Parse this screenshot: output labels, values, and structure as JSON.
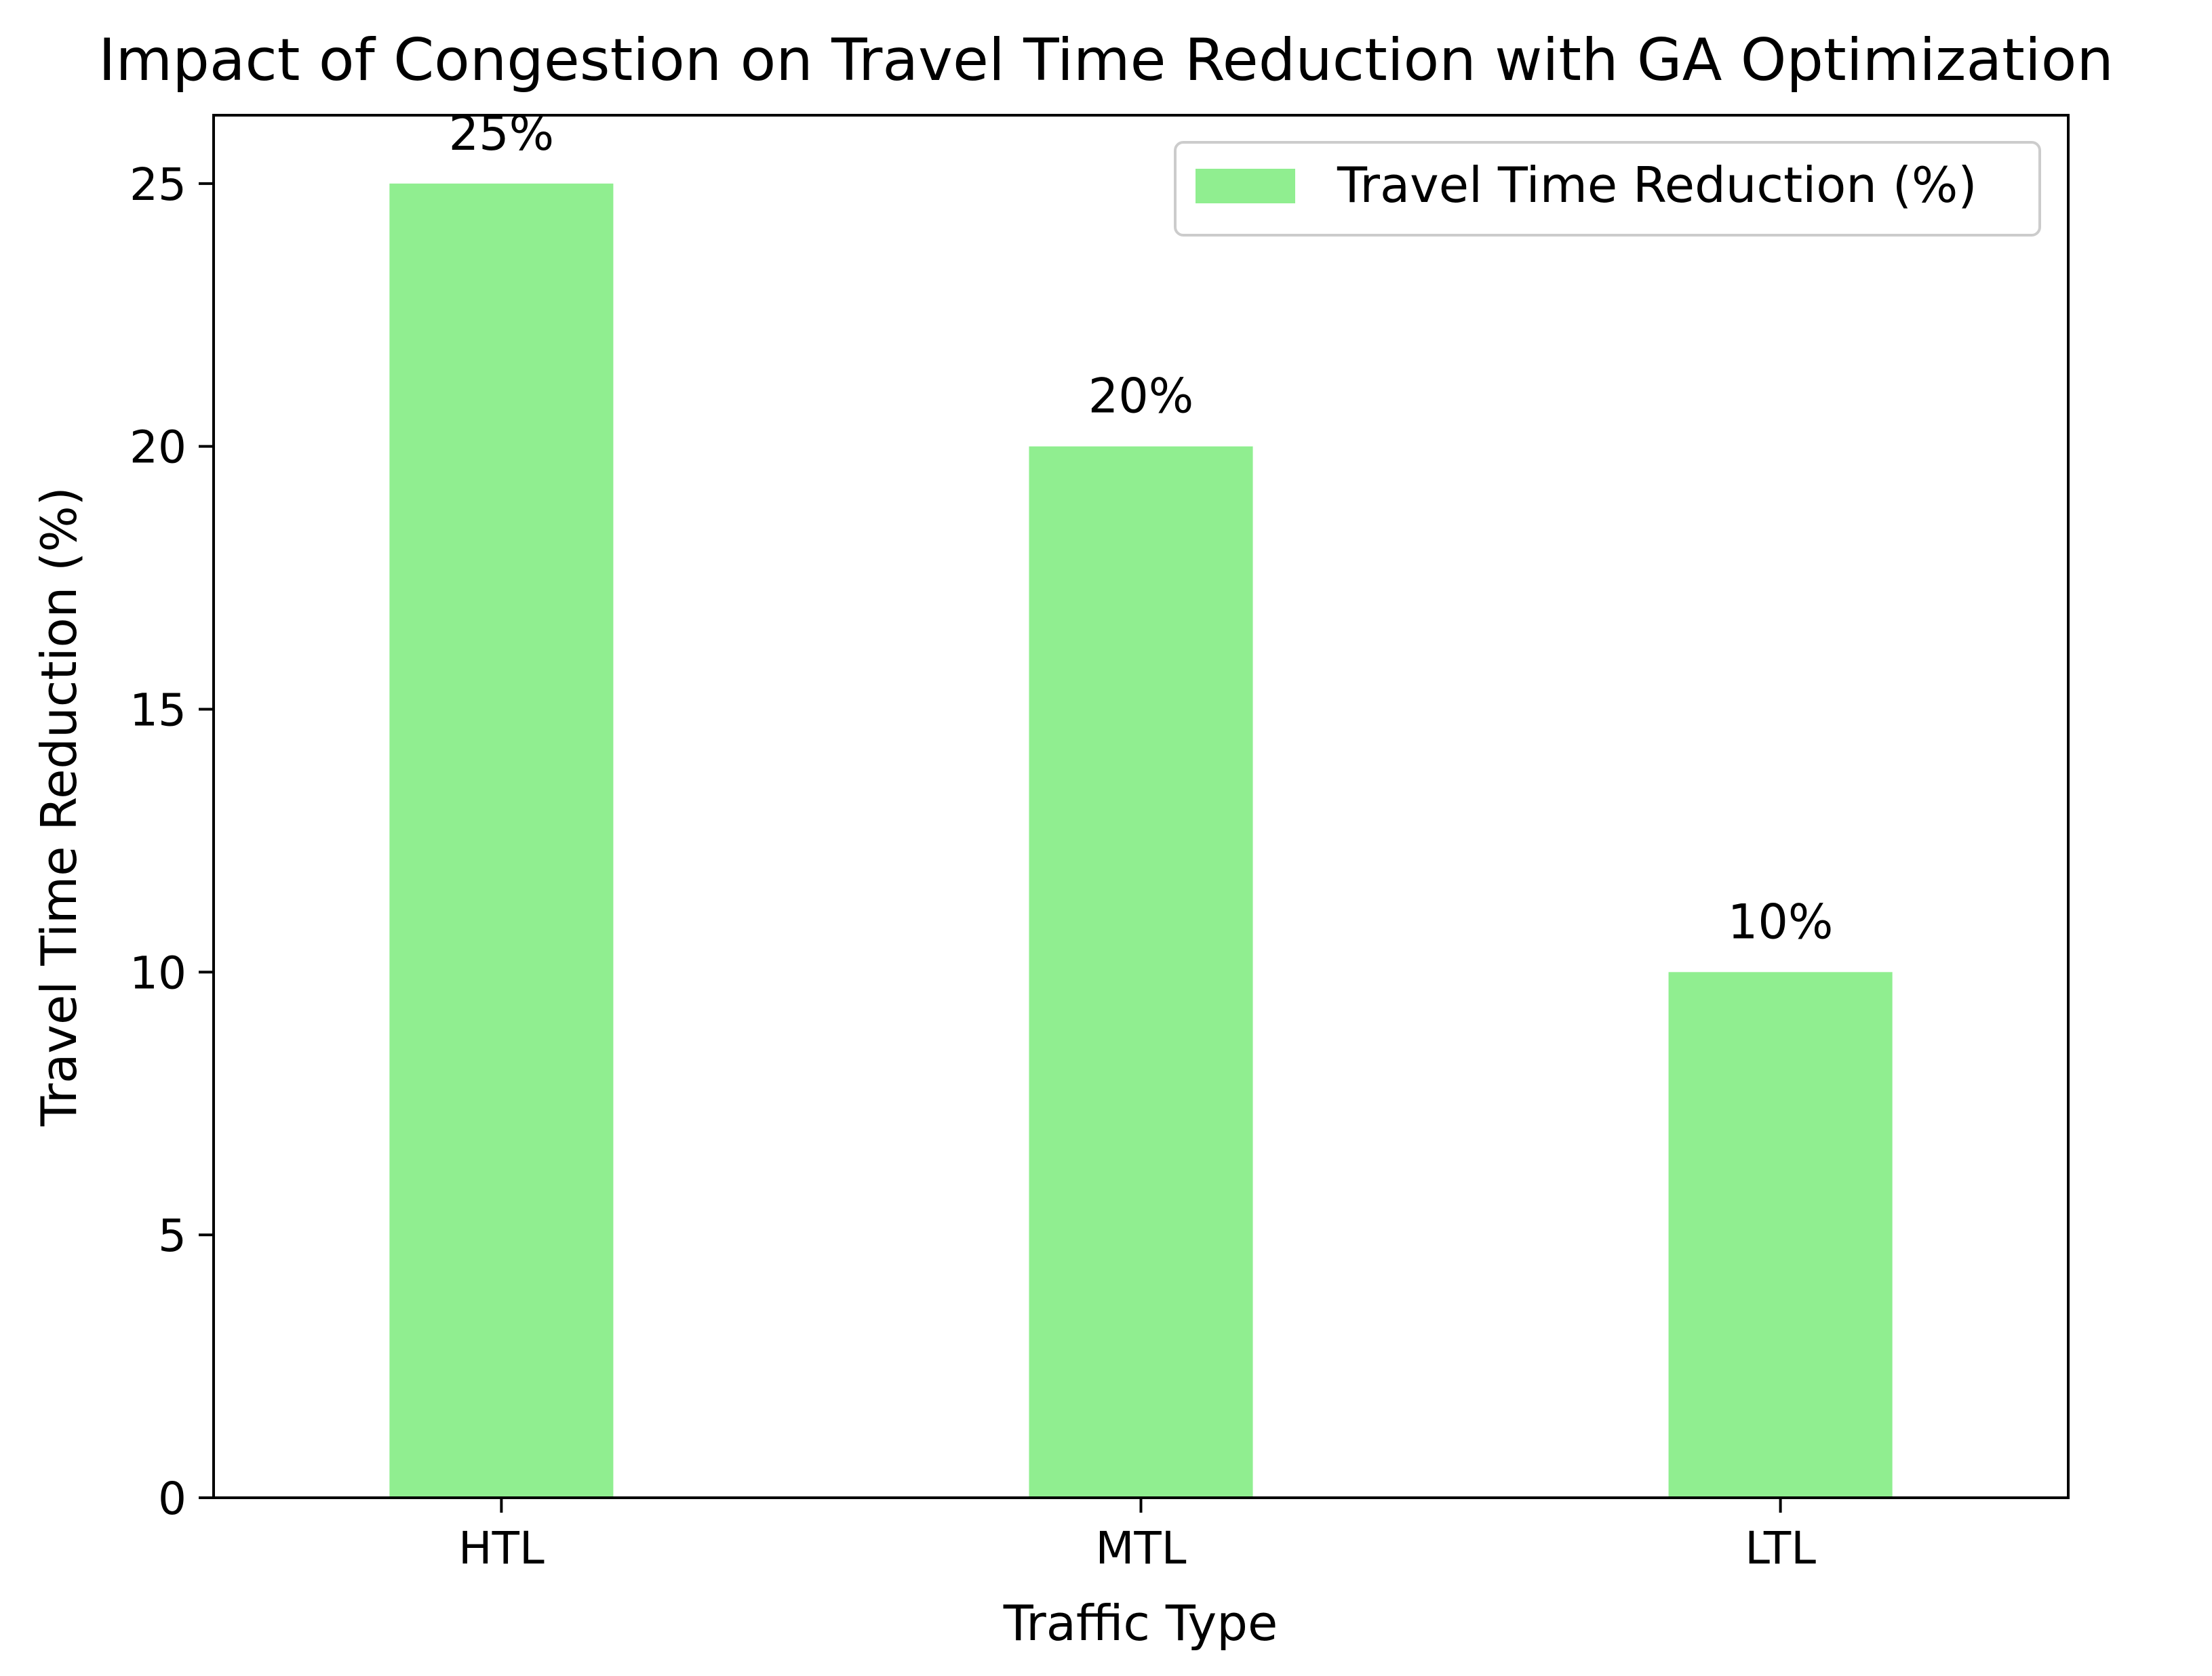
{
  "chart_data": {
    "type": "bar",
    "title": "Impact of Congestion on Travel Time Reduction with GA Optimization",
    "xlabel": "Traffic Type",
    "ylabel": "Travel Time Reduction (%)",
    "categories": [
      "HTL",
      "MTL",
      "LTL"
    ],
    "series": [
      {
        "name": "Travel Time Reduction (%)",
        "values": [
          25,
          20,
          10
        ],
        "color": "#90ee90"
      }
    ],
    "data_labels": [
      "25%",
      "20%",
      "10%"
    ],
    "ylim": [
      0,
      26.3
    ],
    "yticks": [
      0,
      5,
      10,
      15,
      20,
      25
    ],
    "grid": false,
    "legend_position": "top-right"
  }
}
